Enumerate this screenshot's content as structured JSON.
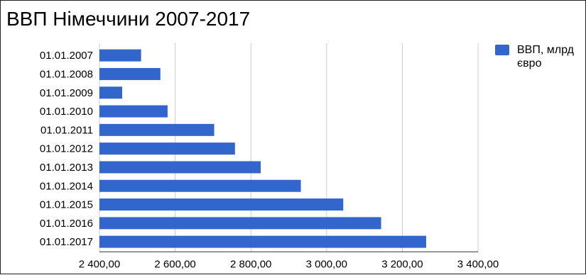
{
  "colors": {
    "bar": "#3366cc",
    "grid": "#cccccc",
    "axis": "#333333",
    "text": "#000000"
  },
  "chart_data": {
    "type": "bar",
    "orientation": "horizontal",
    "title": "ВВП Німеччини 2007-2017",
    "xlabel": "",
    "ylabel": "",
    "categories": [
      "01.01.2007",
      "01.01.2008",
      "01.01.2009",
      "01.01.2010",
      "01.01.2011",
      "01.01.2012",
      "01.01.2013",
      "01.01.2014",
      "01.01.2015",
      "01.01.2016",
      "01.01.2017"
    ],
    "series": [
      {
        "name": "ВВП, млрд євро",
        "values": [
          2510,
          2561,
          2460,
          2580,
          2703,
          2758,
          2826,
          2932,
          3044,
          3144,
          3263
        ]
      }
    ],
    "xlim": [
      2400,
      3400
    ],
    "xticks": [
      2400,
      2600,
      2800,
      3000,
      3200,
      3400
    ],
    "xtick_labels": [
      "2 400,00",
      "2 600,00",
      "2 800,00",
      "3 000,00",
      "3 200,00",
      "3 400,00"
    ],
    "grid": true,
    "legend_position": "right"
  }
}
